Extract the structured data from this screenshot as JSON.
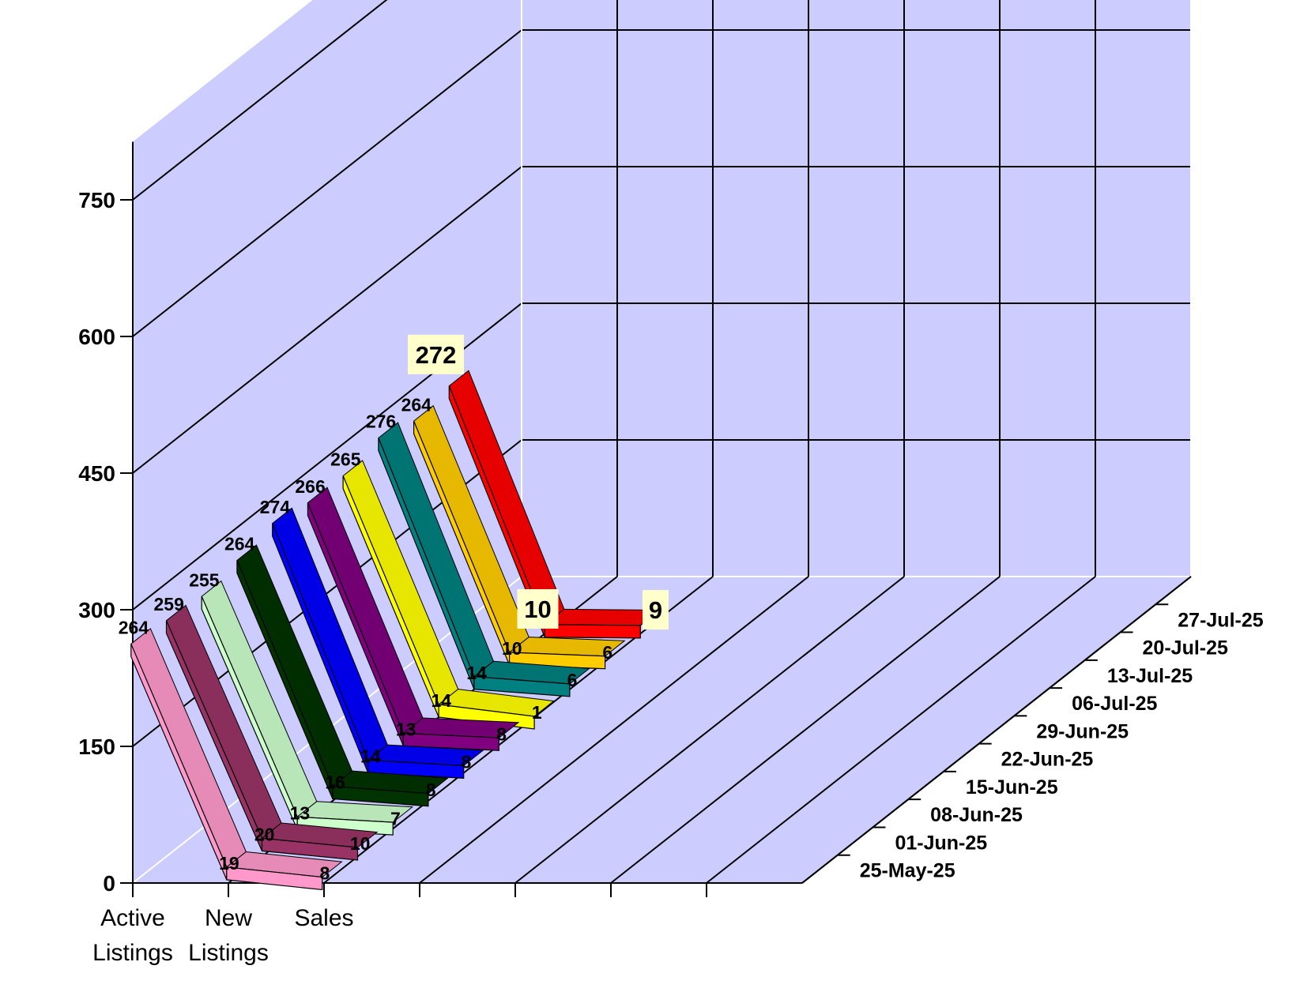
{
  "chart_data": {
    "type": "line",
    "title": "",
    "categories": [
      "Active Listings",
      "New Listings",
      "Sales"
    ],
    "category_label_lines": [
      [
        "Active",
        "Listings"
      ],
      [
        "New",
        "Listings"
      ],
      [
        "Sales"
      ]
    ],
    "y_ticks": [
      0,
      150,
      300,
      450,
      600,
      750
    ],
    "ylim": [
      0,
      750
    ],
    "grid": true,
    "wall_color": "#ccccff",
    "series": [
      {
        "name": "25-May-25",
        "color": "#ff99cc",
        "values": [
          264,
          19,
          8
        ]
      },
      {
        "name": "01-Jun-25",
        "color": "#993366",
        "values": [
          259,
          20,
          10
        ]
      },
      {
        "name": "08-Jun-25",
        "color": "#ccffcc",
        "values": [
          255,
          13,
          7
        ]
      },
      {
        "name": "15-Jun-25",
        "color": "#003300",
        "values": [
          264,
          16,
          8
        ]
      },
      {
        "name": "22-Jun-25",
        "color": "#0000ff",
        "values": [
          274,
          14,
          8
        ]
      },
      {
        "name": "29-Jun-25",
        "color": "#800080",
        "values": [
          266,
          13,
          8
        ]
      },
      {
        "name": "06-Jul-25",
        "color": "#ffff00",
        "values": [
          265,
          14,
          1
        ]
      },
      {
        "name": "13-Jul-25",
        "color": "#008080",
        "values": [
          276,
          14,
          6
        ]
      },
      {
        "name": "20-Jul-25",
        "color": "#ffcc00",
        "values": [
          264,
          10,
          6
        ]
      },
      {
        "name": "27-Jul-25",
        "color": "#ff0000",
        "values": [
          272,
          10,
          9
        ]
      }
    ]
  }
}
